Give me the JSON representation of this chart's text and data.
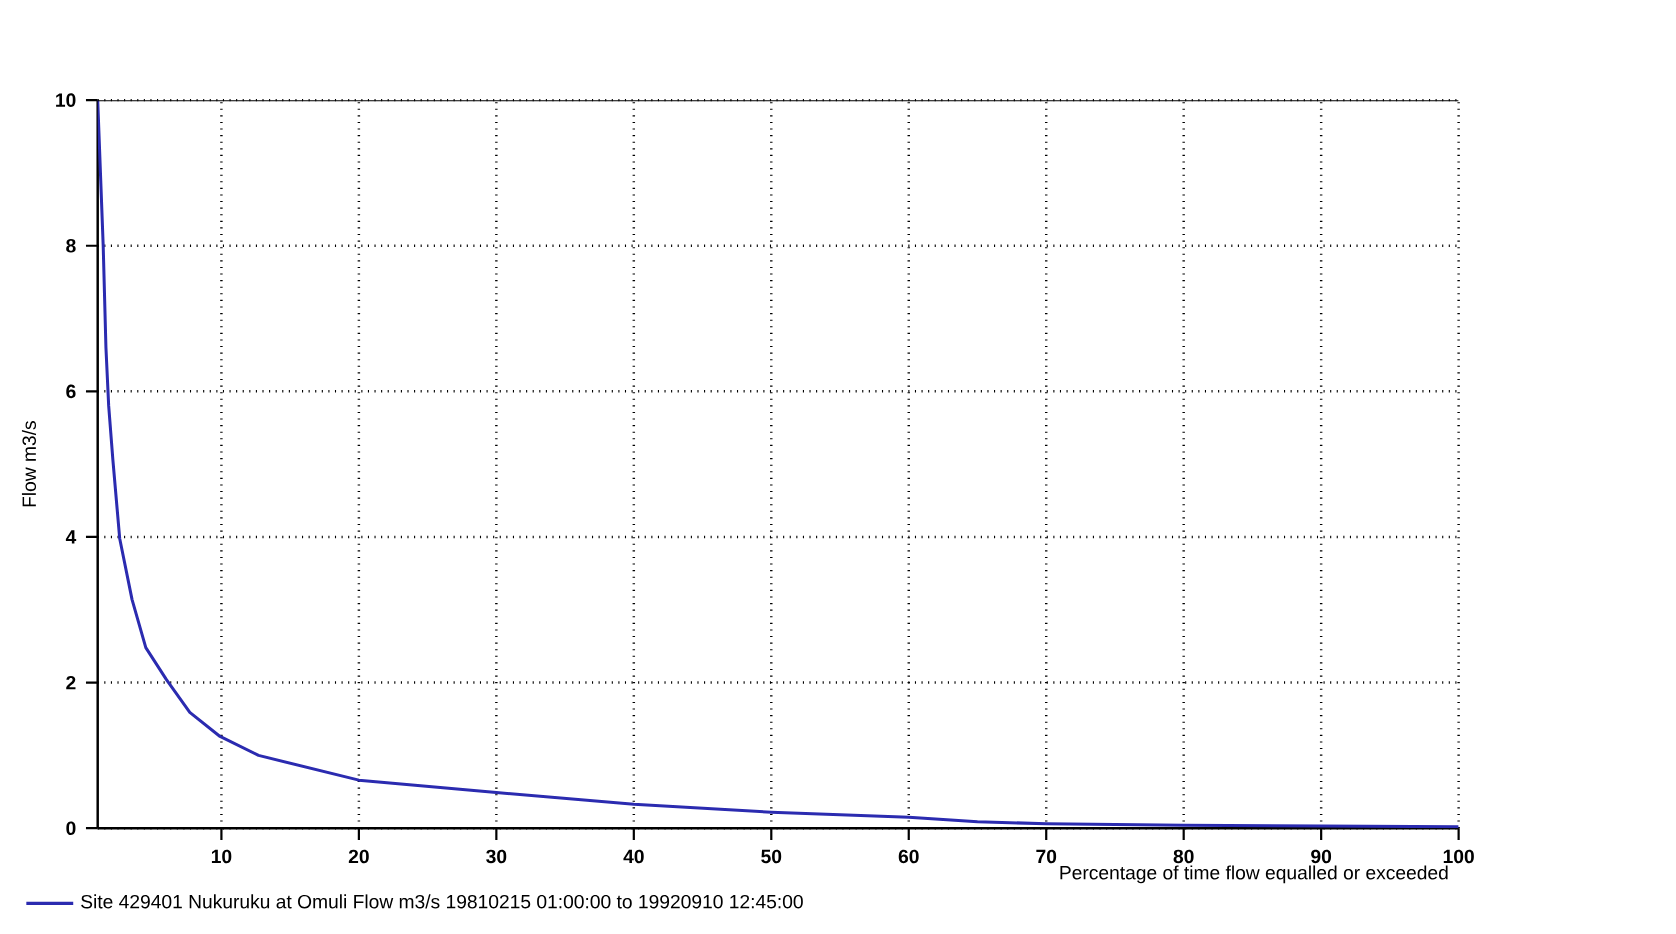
{
  "chart_data": {
    "type": "line",
    "xlabel": "Percentage of time flow equalled or exceeded",
    "ylabel": "Flow m3/s",
    "x": [
      1,
      1.4,
      1.6,
      1.8,
      2.1,
      2.6,
      3.5,
      4.5,
      6.0,
      7.7,
      9.9,
      12.7,
      20,
      30,
      40,
      50,
      60,
      65,
      70,
      80,
      90,
      100
    ],
    "series": [
      {
        "name": "Site 429401 Nukuruku at Omuli Flow m3/s 19810215 01:00:00 to 19920910 12:45:00",
        "color": "#2b2bb0",
        "values": [
          10,
          8.0,
          6.6,
          5.8,
          5.07,
          3.98,
          3.14,
          2.48,
          2.04,
          1.59,
          1.26,
          1.0,
          0.66,
          0.49,
          0.33,
          0.22,
          0.15,
          0.09,
          0.06,
          0.04,
          0.03,
          0.02
        ]
      }
    ],
    "xlim": [
      1,
      100
    ],
    "xticks": [
      10,
      20,
      30,
      40,
      50,
      60,
      70,
      80,
      90,
      100
    ],
    "ylim": [
      0,
      10
    ],
    "yticks": [
      0,
      2,
      4,
      6,
      8,
      10
    ],
    "grid": true,
    "legend": "bottom left",
    "marker": "none",
    "line_style": "solid"
  }
}
